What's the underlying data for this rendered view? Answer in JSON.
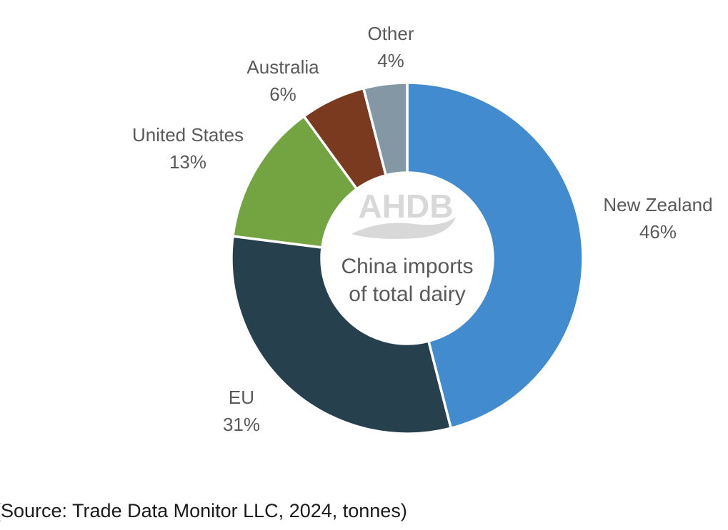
{
  "chart_data": {
    "type": "pie",
    "donut": true,
    "title": "China imports of total dairy",
    "center_label_lines": [
      "China imports",
      "of total dairy"
    ],
    "unit": "%",
    "direction": "clockwise",
    "start_angle_deg": 0,
    "legend_position": "outside-labels",
    "categories": [
      "New Zealand",
      "EU",
      "United States",
      "Australia",
      "Other"
    ],
    "values": [
      46,
      31,
      13,
      6,
      4
    ],
    "slices": [
      {
        "name": "New Zealand",
        "value": 46,
        "pct_label": "46%",
        "color": "#428bce"
      },
      {
        "name": "EU",
        "value": 31,
        "pct_label": "31%",
        "color": "#27404e"
      },
      {
        "name": "United States",
        "value": 13,
        "pct_label": "13%",
        "color": "#74a342"
      },
      {
        "name": "Australia",
        "value": 6,
        "pct_label": "6%",
        "color": "#7a3a20"
      },
      {
        "name": "Other",
        "value": 4,
        "pct_label": "4%",
        "color": "#8497a5"
      }
    ]
  },
  "watermark": {
    "text": "AHDB",
    "color": "#d8d8d8"
  },
  "source_note": "(Source: Trade Data Monitor LLC, 2024, tonnes)",
  "text_colors": {
    "labels": "#595959",
    "source": "#1a1a1a"
  }
}
